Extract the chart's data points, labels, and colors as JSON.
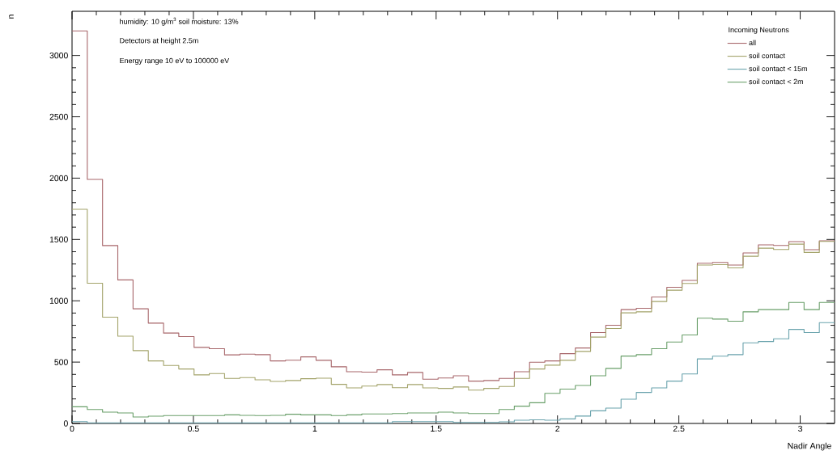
{
  "chart_data": {
    "type": "histogram",
    "xlabel": "Nadir Angle",
    "ylabel": "n",
    "legend_title": "Incoming Neutrons",
    "legend": "top right",
    "annotations": [
      "humidity: 10 g/m$^{3}$ soil moisture: 13%",
      "Detectors at height 2.5m",
      "Energy range 10 eV to 100000 eV"
    ],
    "xlim": [
      0,
      3.1416
    ],
    "ylim": [
      0,
      3360
    ],
    "xticks": [
      0,
      0.5,
      1,
      1.5,
      2,
      2.5,
      3
    ],
    "yticks": [
      0,
      500,
      1000,
      1500,
      2000,
      2500,
      3000
    ],
    "bins": [
      0,
      0.0628,
      0.1257,
      0.1885,
      0.2513,
      0.3142,
      0.377,
      0.4398,
      0.5027,
      0.5655,
      0.6283,
      0.6912,
      0.754,
      0.8168,
      0.8796,
      0.9425,
      1.0053,
      1.0681,
      1.131,
      1.1938,
      1.2566,
      1.3195,
      1.3823,
      1.4451,
      1.508,
      1.5708,
      1.6336,
      1.6965,
      1.7593,
      1.8221,
      1.885,
      1.9478,
      2.0106,
      2.0735,
      2.1363,
      2.1991,
      2.2619,
      2.3248,
      2.3876,
      2.4504,
      2.5133,
      2.5761,
      2.6389,
      2.7018,
      2.7646,
      2.8274,
      2.8903,
      2.9531,
      3.0159,
      3.0788,
      3.1416
    ],
    "series": [
      {
        "name": "all",
        "color": "#a8676b",
        "values": [
          3200,
          1990,
          1450,
          1170,
          935,
          818,
          737,
          708,
          620,
          609,
          559,
          565,
          561,
          510,
          516,
          543,
          515,
          462,
          422,
          418,
          437,
          396,
          416,
          361,
          371,
          389,
          345,
          350,
          367,
          422,
          499,
          510,
          569,
          615,
          741,
          800,
          928,
          939,
          1031,
          1110,
          1166,
          1306,
          1313,
          1291,
          1390,
          1456,
          1451,
          1482,
          1416,
          1489
        ]
      },
      {
        "name": "soil contact",
        "color": "#a3a36a",
        "values": [
          1746,
          1143,
          866,
          712,
          594,
          510,
          473,
          444,
          396,
          407,
          367,
          374,
          356,
          343,
          350,
          365,
          369,
          319,
          290,
          305,
          317,
          292,
          317,
          290,
          286,
          297,
          272,
          286,
          301,
          367,
          444,
          475,
          515,
          587,
          704,
          774,
          902,
          910,
          994,
          1086,
          1141,
          1291,
          1295,
          1268,
          1363,
          1429,
          1418,
          1462,
          1394,
          1484
        ]
      },
      {
        "name": "soil contact < 15m",
        "color": "#6aa3ad",
        "values": [
          15,
          5,
          5,
          5,
          5,
          5,
          5,
          5,
          5,
          5,
          5,
          5,
          5,
          5,
          5,
          5,
          5,
          5,
          5,
          5,
          5,
          15,
          15,
          15,
          15,
          8,
          8,
          8,
          13,
          26,
          30,
          26,
          37,
          60,
          103,
          125,
          198,
          253,
          290,
          345,
          404,
          526,
          548,
          561,
          657,
          668,
          690,
          767,
          741,
          822
        ]
      },
      {
        "name": "soil contact < 2m",
        "color": "#6a9f6a",
        "values": [
          136,
          114,
          92,
          86,
          53,
          59,
          64,
          64,
          64,
          64,
          70,
          66,
          64,
          66,
          75,
          70,
          70,
          64,
          70,
          77,
          77,
          81,
          86,
          86,
          92,
          86,
          81,
          81,
          114,
          141,
          169,
          245,
          280,
          310,
          389,
          449,
          549,
          561,
          609,
          664,
          721,
          858,
          851,
          833,
          910,
          928,
          928,
          987,
          928,
          987
        ]
      }
    ]
  }
}
